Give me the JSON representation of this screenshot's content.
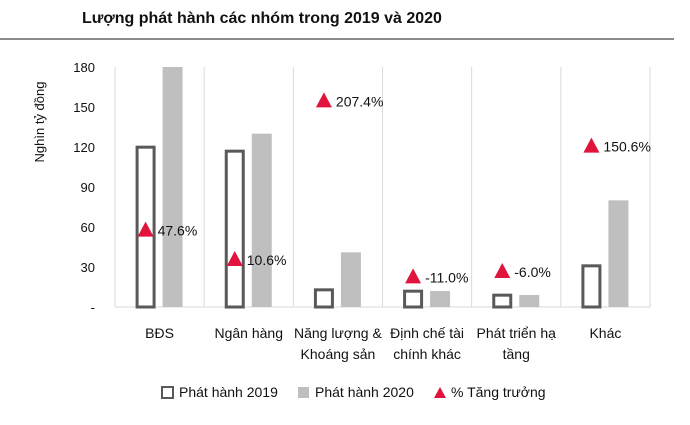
{
  "chart_data": {
    "type": "bar",
    "title": "Lượng phát hành các nhóm trong 2019 và 2020",
    "ylabel": "Nghìn tỷ đồng",
    "xlabel": "",
    "ylim": [
      0,
      180
    ],
    "yticks": [
      0,
      30,
      60,
      90,
      120,
      150,
      180
    ],
    "ytick_labels": [
      "-",
      "30",
      "60",
      "90",
      "120",
      "150",
      "180"
    ],
    "categories": [
      [
        "BĐS"
      ],
      [
        "Ngân hàng"
      ],
      [
        "Năng lượng &",
        "Khoáng sản"
      ],
      [
        "Định chế tài",
        "chính khác"
      ],
      [
        "Phát triển hạ",
        "tầng"
      ],
      [
        "Khác"
      ]
    ],
    "series": [
      {
        "name": "Phát hành 2019",
        "kind": "bar",
        "values": [
          121,
          118,
          14,
          13,
          10,
          32
        ]
      },
      {
        "name": "Phát hành 2020",
        "kind": "bar",
        "values": [
          180,
          130,
          41,
          12,
          9,
          80
        ]
      },
      {
        "name": "% Tăng trưởng",
        "kind": "marker",
        "marker_level": [
          58,
          36,
          155,
          23,
          27,
          121
        ],
        "labels": [
          "47.6%",
          "10.6%",
          "207.4%",
          "-11.0%",
          "-6.0%",
          "150.6%"
        ]
      }
    ],
    "colors": {
      "bar2019_stroke": "#595959",
      "bar2020_fill": "#bfbfbf",
      "marker": "#e0143c",
      "grid": "#d9d9d9"
    },
    "legend_position": "bottom"
  }
}
